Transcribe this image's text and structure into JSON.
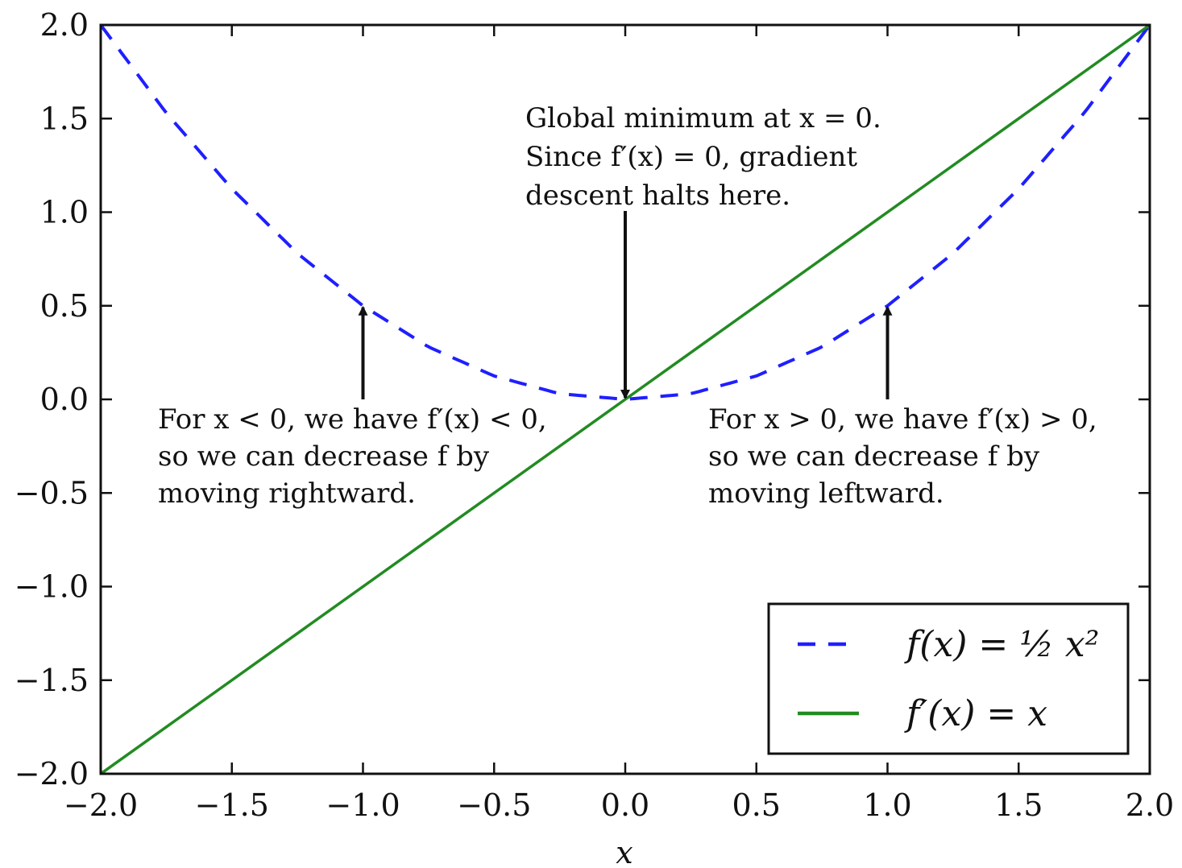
{
  "chart_data": {
    "type": "line",
    "xlabel": "x",
    "ylabel": "",
    "xlim": [
      -2.0,
      2.0
    ],
    "ylim": [
      -2.0,
      2.0
    ],
    "grid": false,
    "legend_position": "bottom-right",
    "x_ticks": [
      -2.0,
      -1.5,
      -1.0,
      -0.5,
      0.0,
      0.5,
      1.0,
      1.5,
      2.0
    ],
    "y_ticks": [
      -2.0,
      -1.5,
      -1.0,
      -0.5,
      0.0,
      0.5,
      1.0,
      1.5,
      2.0
    ],
    "x_tick_labels": [
      "−2.0",
      "−1.5",
      "−1.0",
      "−0.5",
      "0.0",
      "0.5",
      "1.0",
      "1.5",
      "2.0"
    ],
    "y_tick_labels": [
      "−2.0",
      "−1.5",
      "−1.0",
      "−0.5",
      "0.0",
      "0.5",
      "1.0",
      "1.5",
      "2.0"
    ],
    "series": [
      {
        "name": "f(x) = ½ x²",
        "style": "dashed",
        "color": "#1f1fff",
        "x": [
          -2.0,
          -1.75,
          -1.5,
          -1.25,
          -1.0,
          -0.75,
          -0.5,
          -0.25,
          0.0,
          0.25,
          0.5,
          0.75,
          1.0,
          1.25,
          1.5,
          1.75,
          2.0
        ],
        "y": [
          2.0,
          1.53,
          1.125,
          0.78,
          0.5,
          0.28,
          0.125,
          0.03,
          0.0,
          0.03,
          0.125,
          0.28,
          0.5,
          0.78,
          1.125,
          1.53,
          2.0
        ]
      },
      {
        "name": "f′(x) = x",
        "style": "solid",
        "color": "#228b22",
        "x": [
          -2.0,
          2.0
        ],
        "y": [
          -2.0,
          2.0
        ]
      }
    ],
    "annotations": [
      {
        "lines": [
          "Global minimum at x = 0.",
          "Since f′(x) = 0, gradient",
          "descent halts here."
        ],
        "arrow_to": [
          0.0,
          0.0
        ],
        "arrow_from": [
          0.0,
          1.0
        ]
      },
      {
        "lines": [
          "For x < 0, we have f′(x) < 0,",
          "so we can decrease f by",
          "moving rightward."
        ],
        "arrow_to": [
          -1.0,
          0.5
        ],
        "arrow_from": [
          -1.0,
          0.0
        ]
      },
      {
        "lines": [
          "For x > 0, we have f′(x) > 0,",
          "so we can decrease f by",
          "moving leftward."
        ],
        "arrow_to": [
          1.0,
          0.5
        ],
        "arrow_from": [
          1.0,
          0.0
        ]
      }
    ]
  }
}
